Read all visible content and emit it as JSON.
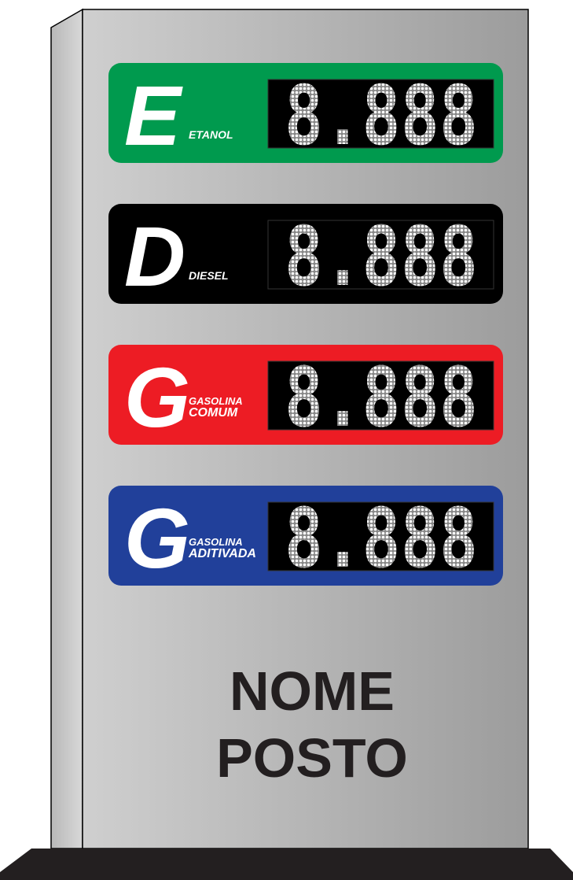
{
  "sign": {
    "rows": [
      {
        "letter": "E",
        "label": [
          "ETANOL"
        ],
        "price": "8.888",
        "color": "#009a4e"
      },
      {
        "letter": "D",
        "label": [
          "DIESEL"
        ],
        "price": "8.888",
        "color": "#000000"
      },
      {
        "letter": "G",
        "label": [
          "GASOLINA",
          "COMUM"
        ],
        "price": "8.888",
        "color": "#ed1c24"
      },
      {
        "letter": "G",
        "label": [
          "GASOLINA",
          "ADITIVADA"
        ],
        "price": "8.888",
        "color": "#21409a"
      }
    ],
    "name": [
      "NOME",
      "POSTO"
    ]
  }
}
